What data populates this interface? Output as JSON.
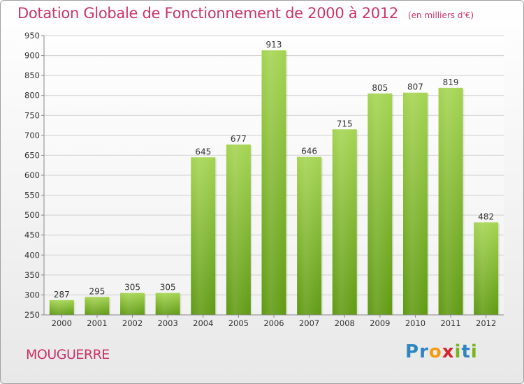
{
  "header": {
    "title": "Dotation Globale de Fonctionnement de 2000 à 2012",
    "unit": "(en milliers d'€)"
  },
  "commune": "MOUGUERRE",
  "logo": {
    "letters": [
      {
        "char": "P",
        "color": "#2e86c1"
      },
      {
        "char": "r",
        "color": "#2e86c1"
      },
      {
        "char": "o",
        "color": "#f39c12"
      },
      {
        "char": "x",
        "color": "#d4262c"
      },
      {
        "char": "i",
        "color": "#7ab51d"
      },
      {
        "char": "t",
        "color": "#2e86c1"
      },
      {
        "char": "i",
        "color": "#7ab51d"
      }
    ]
  },
  "chart_data": {
    "type": "bar",
    "title": "Dotation Globale de Fonctionnement de 2000 à 2012",
    "subtitle": "(en milliers d'€)",
    "categories": [
      "2000",
      "2001",
      "2002",
      "2003",
      "2004",
      "2005",
      "2006",
      "2007",
      "2008",
      "2009",
      "2010",
      "2011",
      "2012"
    ],
    "values": [
      287,
      295,
      305,
      305,
      645,
      677,
      913,
      646,
      715,
      805,
      807,
      819,
      482
    ],
    "ylim": [
      250,
      950
    ],
    "yticks": [
      250,
      300,
      350,
      400,
      450,
      500,
      550,
      600,
      650,
      700,
      750,
      800,
      850,
      900,
      950
    ],
    "grid": true,
    "bar_color": "#7ab51d"
  }
}
